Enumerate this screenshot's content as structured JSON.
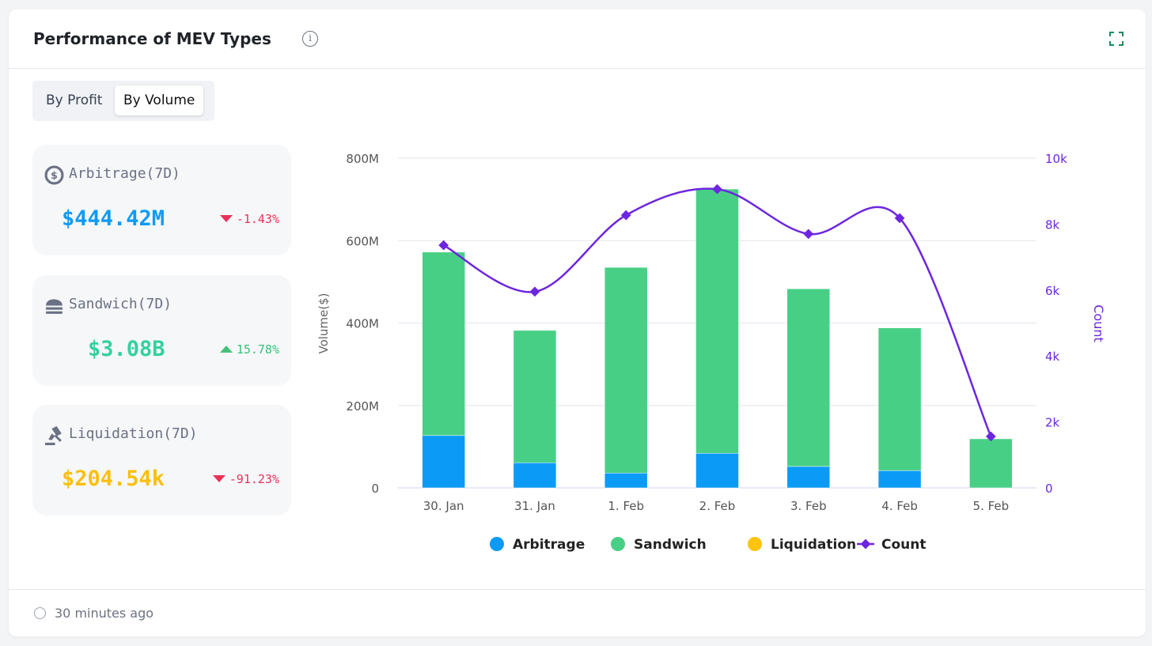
{
  "header": {
    "title": "Performance of MEV Types",
    "info_icon": "i"
  },
  "toggle": {
    "options": [
      "By Profit",
      "By Volume"
    ],
    "selected": "By Volume"
  },
  "stats": [
    {
      "label": "Arbitrage(7D)",
      "value": "$444.42M",
      "change": "-1.43%",
      "direction": "down",
      "value_color": "#0d9bf5",
      "icon": "dollar-exchange-icon"
    },
    {
      "label": "Sandwich(7D)",
      "value": "$3.08B",
      "change": "15.78%",
      "direction": "up",
      "value_color": "#34d1a0",
      "icon": "sandwich-icon"
    },
    {
      "label": "Liquidation(7D)",
      "value": "$204.54k",
      "change": "-91.23%",
      "direction": "down",
      "value_color": "#fbbf0d",
      "icon": "gavel-icon"
    }
  ],
  "footer": {
    "updated": "30 minutes ago"
  },
  "chart_data": {
    "type": "bar",
    "categories": [
      "30. Jan",
      "31. Jan",
      "1. Feb",
      "2. Feb",
      "3. Feb",
      "4. Feb",
      "5. Feb"
    ],
    "series": [
      {
        "name": "Arbitrage",
        "type": "bar",
        "axis": "left",
        "color": "#0b9bf7",
        "values": [
          127,
          61,
          36,
          84,
          52,
          42,
          0
        ]
      },
      {
        "name": "Sandwich",
        "type": "bar",
        "axis": "left",
        "color": "#48cf86",
        "values": [
          445,
          321,
          499,
          641,
          431,
          346,
          119
        ]
      },
      {
        "name": "Liquidation",
        "type": "bar",
        "axis": "left",
        "color": "#fcc40f",
        "values": [
          0,
          0,
          0,
          0,
          0,
          0,
          0
        ]
      },
      {
        "name": "Count",
        "type": "line",
        "axis": "right",
        "color": "#6d26e0",
        "values": [
          7360,
          5950,
          8270,
          9060,
          7700,
          8180,
          1560
        ]
      }
    ],
    "ylabel": "Volume($)",
    "y2label": "Count",
    "ylim": [
      0,
      800
    ],
    "y2lim": [
      0,
      10000
    ],
    "yticks": [
      "0",
      "200M",
      "400M",
      "600M",
      "800M"
    ],
    "y2ticks": [
      "0",
      "2k",
      "4k",
      "6k",
      "8k",
      "10k"
    ],
    "stacked": true,
    "grid": true,
    "legend": "bottom-center"
  }
}
